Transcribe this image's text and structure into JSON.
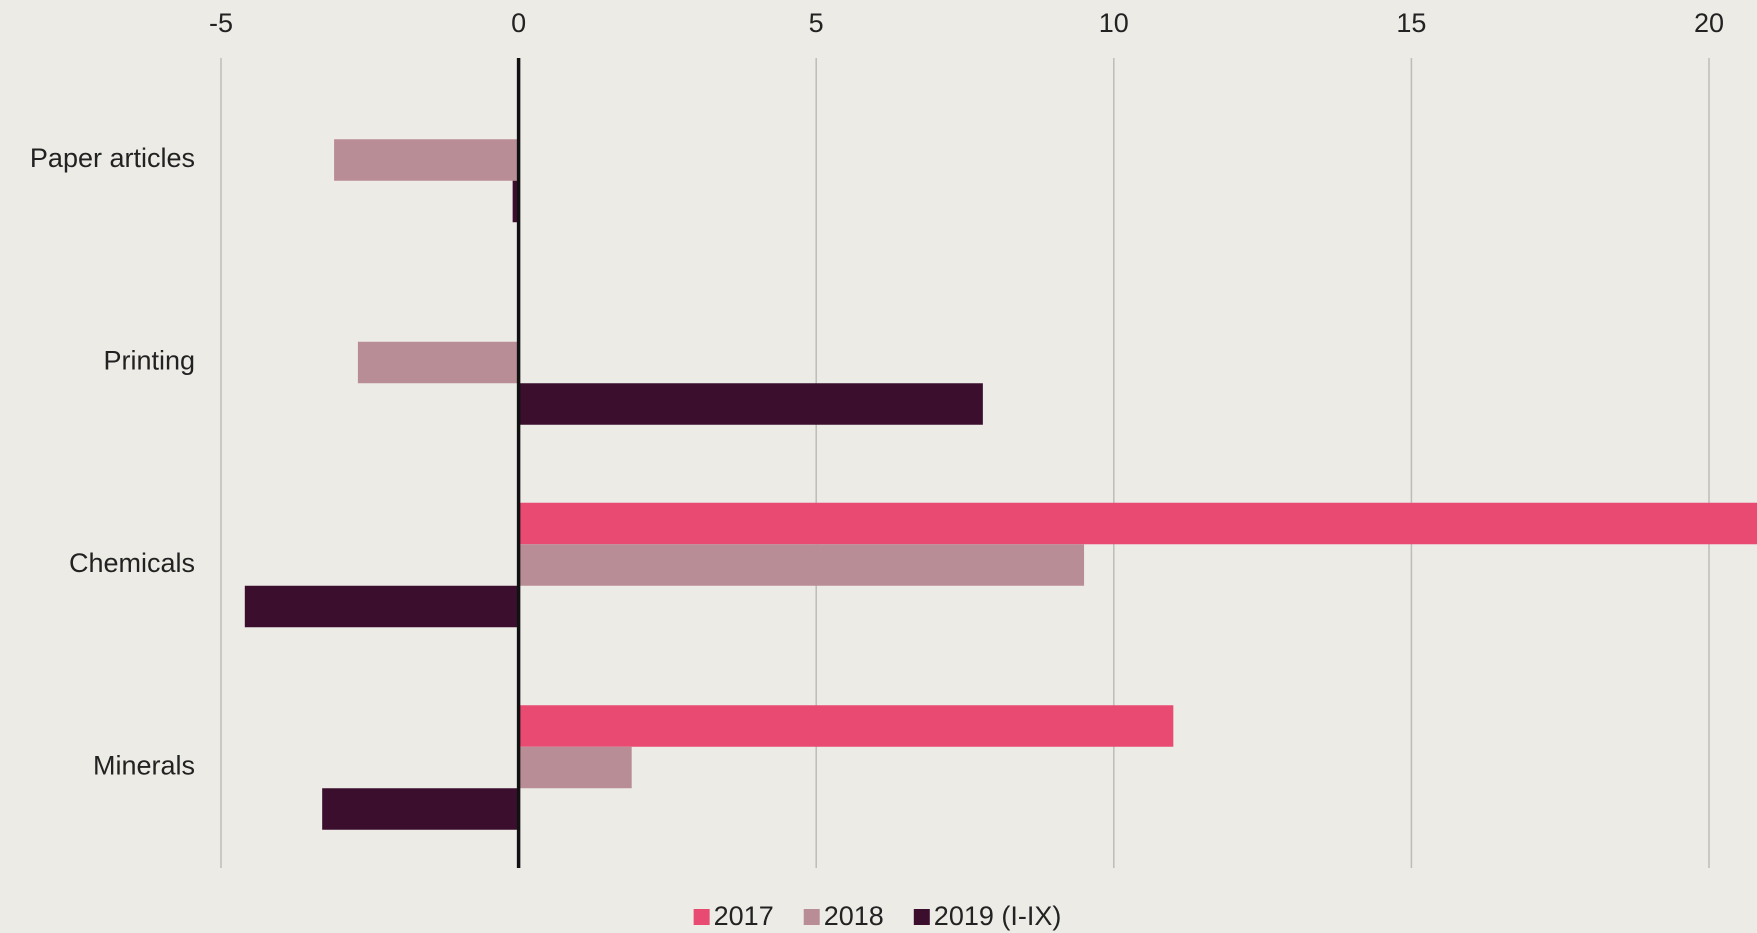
{
  "chart_data": {
    "type": "hbar",
    "categories": [
      "Paper articles",
      "Printing",
      "Chemicals",
      "Minerals"
    ],
    "series": [
      {
        "name": "2017",
        "color": "#e84a72",
        "values": [
          null,
          null,
          21,
          11
        ]
      },
      {
        "name": "2018",
        "color": "#b98d96",
        "values": [
          -3.1,
          -2.7,
          9.5,
          1.9
        ]
      },
      {
        "name": "2019 (I-IX)",
        "color": "#3b0e2e",
        "values": [
          -0.1,
          7.8,
          -4.6,
          -3.3
        ]
      }
    ],
    "xlim": [
      -5,
      20
    ],
    "xticks": [
      -5,
      0,
      5,
      10,
      15,
      20
    ],
    "grid": true,
    "legend": "bottom"
  }
}
